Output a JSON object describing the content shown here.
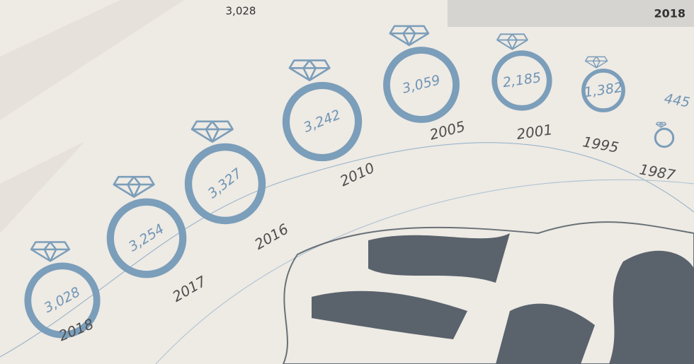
{
  "chart_data": {
    "type": "ring",
    "highlight_value": "3,028",
    "highlight_year": "2018",
    "categories": [
      "2018",
      "2017",
      "2016",
      "2010",
      "2005",
      "2001",
      "1995",
      "1987"
    ],
    "values": [
      3028,
      3254,
      3327,
      3242,
      3059,
      2185,
      1382,
      445
    ],
    "value_labels": [
      "3,028",
      "3,254",
      "3,327",
      "3,242",
      "3,059",
      "2,185",
      "1,382",
      "445"
    ],
    "color": "#7b9eba"
  }
}
